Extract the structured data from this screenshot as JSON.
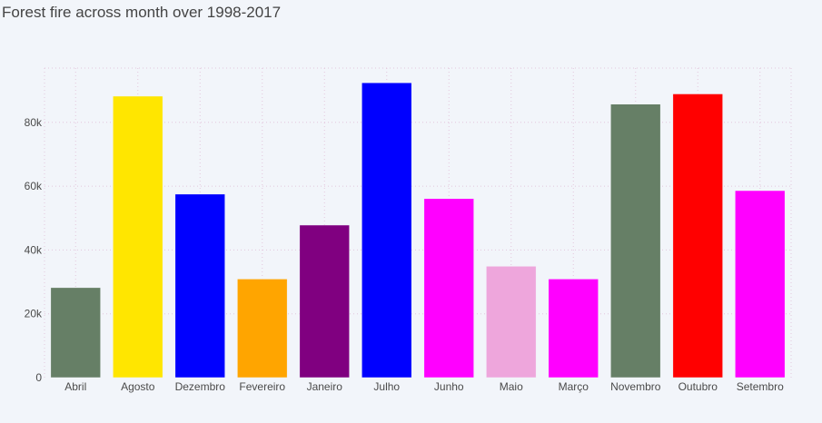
{
  "chart_data": {
    "type": "bar",
    "title": "Forest fire across month over 1998-2017",
    "xlabel": "",
    "ylabel": "",
    "categories": [
      "Abril",
      "Agosto",
      "Dezembro",
      "Fevereiro",
      "Janeiro",
      "Julho",
      "Junho",
      "Maio",
      "Março",
      "Novembro",
      "Outubro",
      "Setembro"
    ],
    "values": [
      28200,
      88200,
      57500,
      30900,
      47800,
      92400,
      56100,
      34900,
      30900,
      85700,
      88900,
      58600
    ],
    "colors": [
      "#667f66",
      "#ffe600",
      "#0000ff",
      "#ffa500",
      "#800080",
      "#0000ff",
      "#ff00ff",
      "#eea6dc",
      "#ff00ff",
      "#667f66",
      "#ff0000",
      "#ff00ff"
    ],
    "ylim": [
      0,
      97000
    ],
    "yticks": [
      0,
      20000,
      40000,
      60000,
      80000
    ],
    "ytick_labels": [
      "0",
      "20k",
      "40k",
      "60k",
      "80k"
    ],
    "grid": true,
    "legend": "none"
  }
}
